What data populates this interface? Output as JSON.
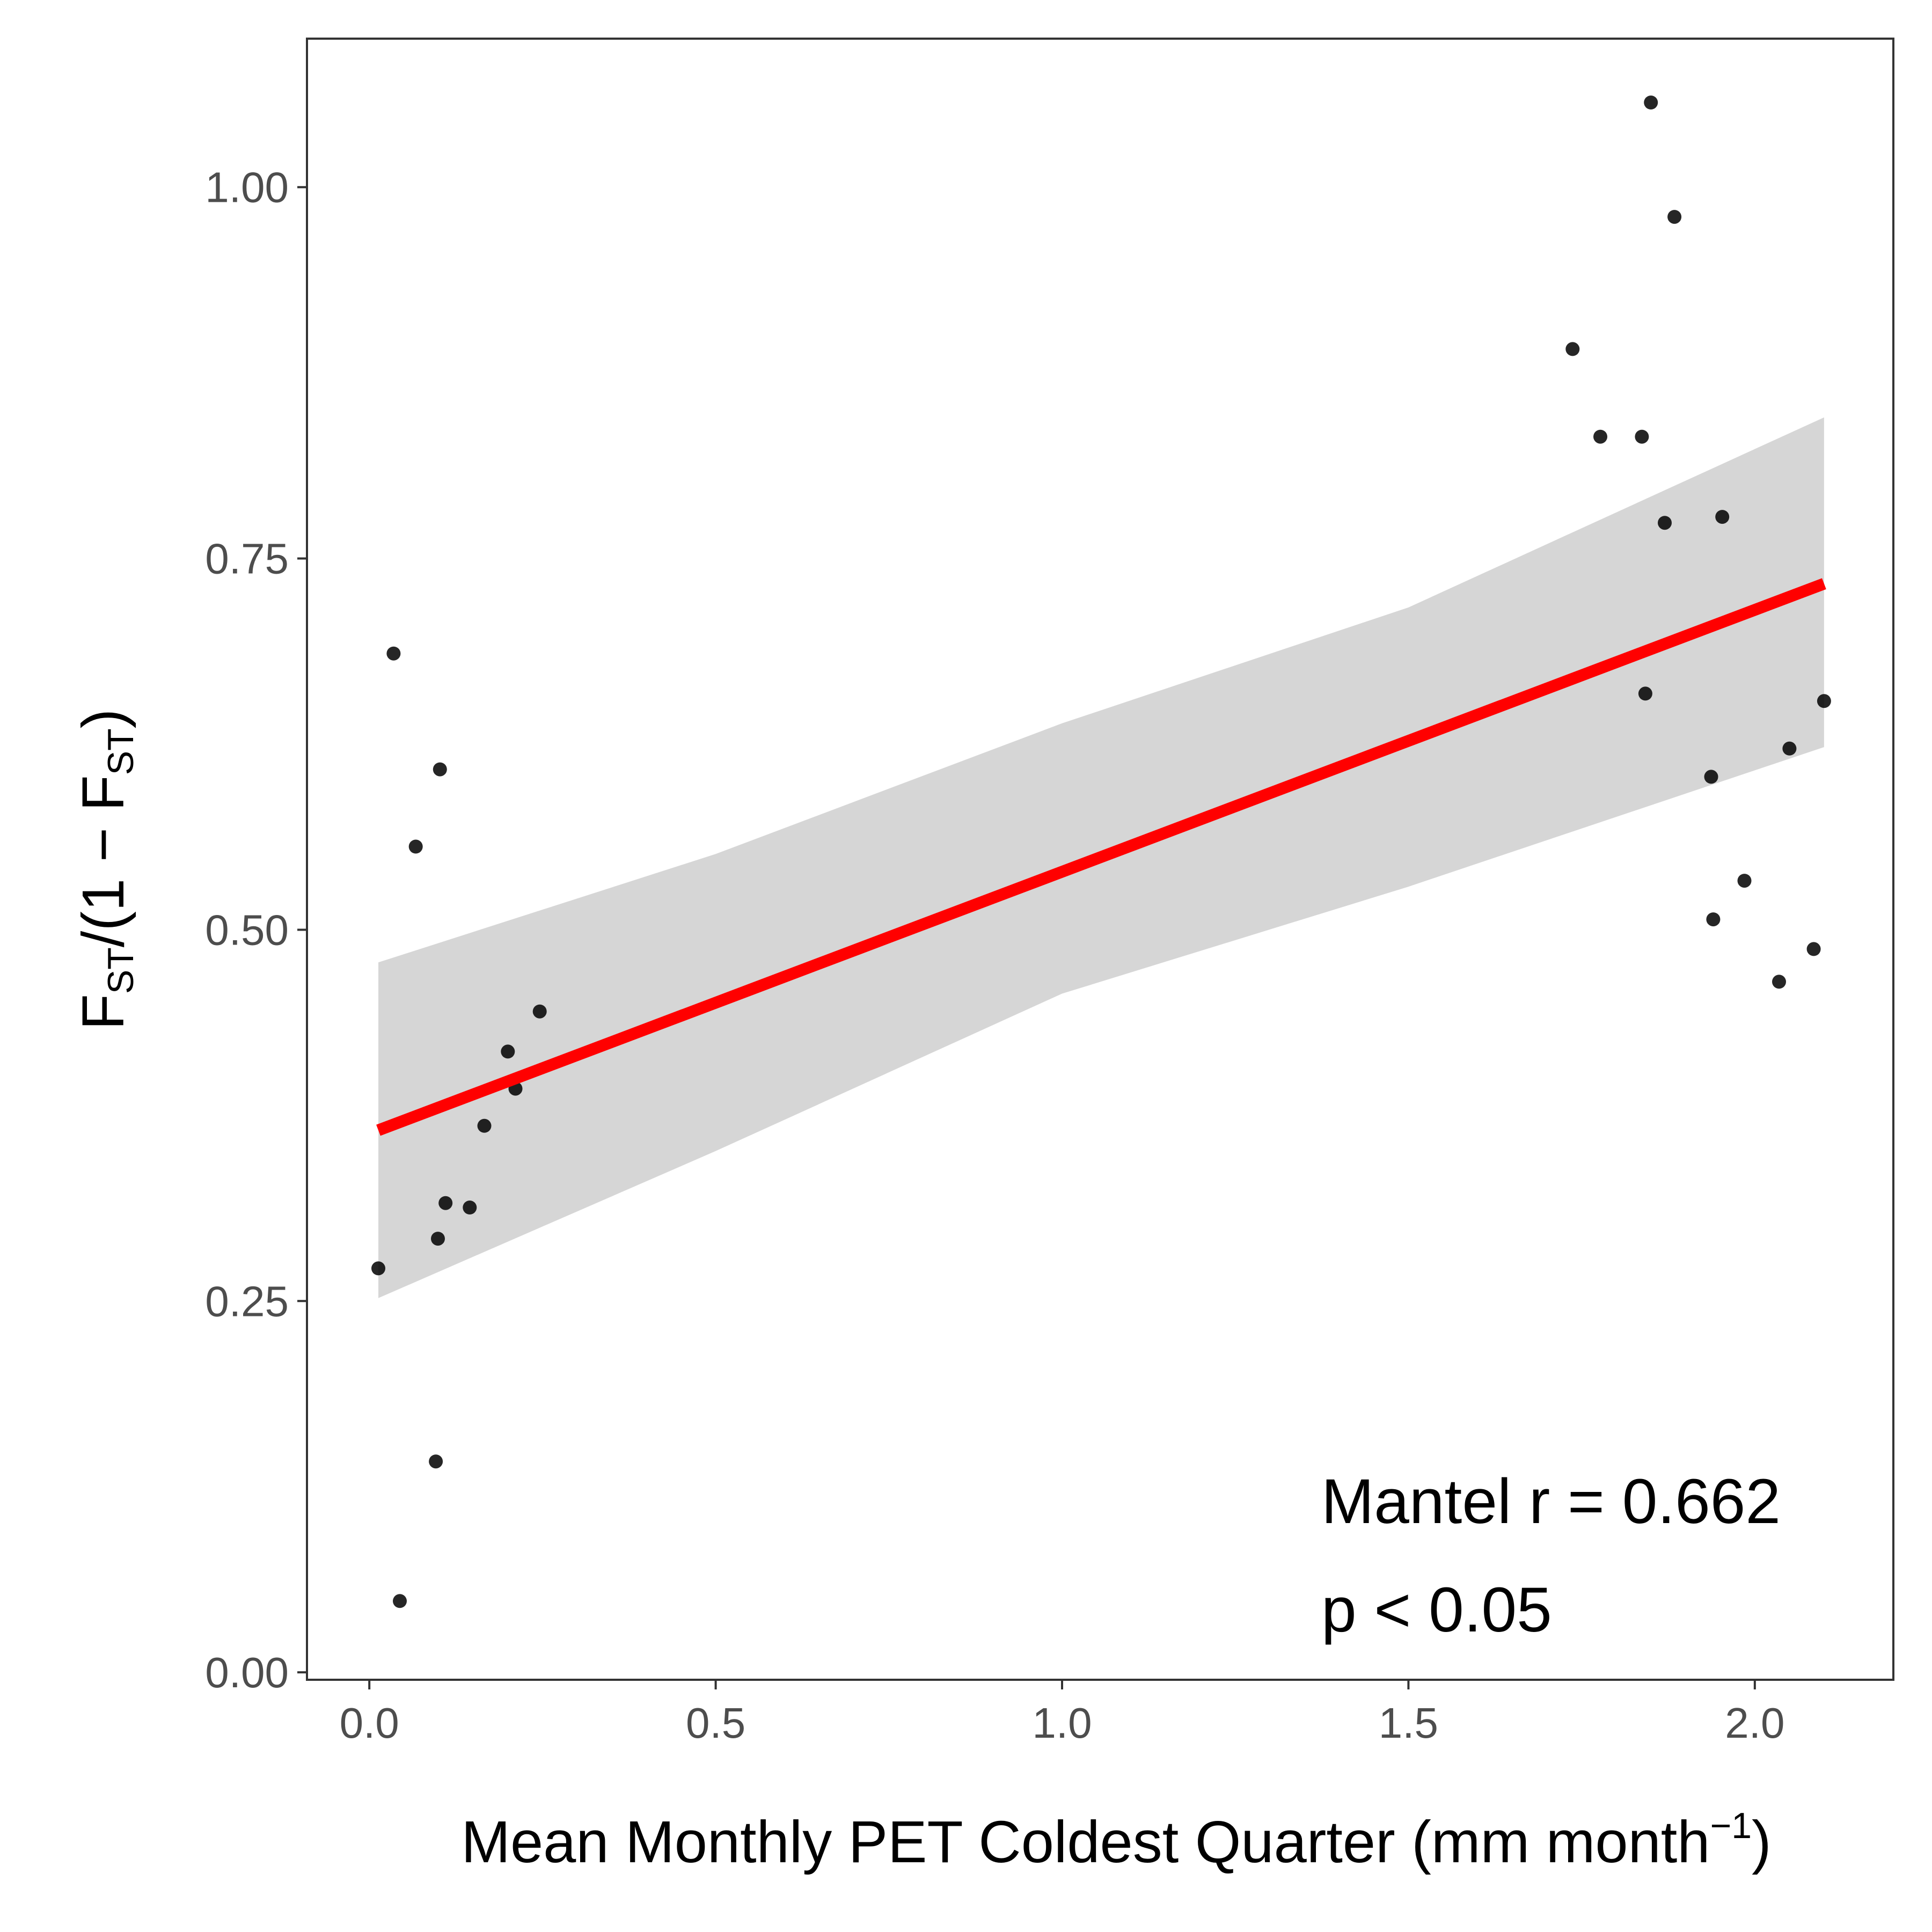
{
  "chart_data": {
    "type": "scatter",
    "xlabel": {
      "main": "Mean Monthly PET Coldest Quarter (mm month",
      "superscript": "−1",
      "close": ")"
    },
    "ylabel": {
      "f1": "F",
      "sub1": "ST",
      "mid": "/(1 − F",
      "sub2": "ST",
      "close": ")"
    },
    "xlim": [
      -0.09,
      2.2
    ],
    "ylim": [
      -0.005,
      1.1
    ],
    "x_ticks": [
      {
        "value": 0.0,
        "label": "0.0"
      },
      {
        "value": 0.5,
        "label": "0.5"
      },
      {
        "value": 1.0,
        "label": "1.0"
      },
      {
        "value": 1.5,
        "label": "1.5"
      },
      {
        "value": 2.0,
        "label": "2.0"
      }
    ],
    "y_ticks": [
      {
        "value": 0.0,
        "label": "0.00"
      },
      {
        "value": 0.25,
        "label": "0.25"
      },
      {
        "value": 0.5,
        "label": "0.50"
      },
      {
        "value": 0.75,
        "label": "0.75"
      },
      {
        "value": 1.0,
        "label": "1.00"
      }
    ],
    "grid": false,
    "points": [
      {
        "x": 0.013,
        "y": 0.272
      },
      {
        "x": 0.035,
        "y": 0.686
      },
      {
        "x": 0.044,
        "y": 0.048
      },
      {
        "x": 0.067,
        "y": 0.556
      },
      {
        "x": 0.096,
        "y": 0.142
      },
      {
        "x": 0.099,
        "y": 0.292
      },
      {
        "x": 0.102,
        "y": 0.608
      },
      {
        "x": 0.11,
        "y": 0.316
      },
      {
        "x": 0.145,
        "y": 0.313
      },
      {
        "x": 0.166,
        "y": 0.368
      },
      {
        "x": 0.2,
        "y": 0.418
      },
      {
        "x": 0.211,
        "y": 0.393
      },
      {
        "x": 0.246,
        "y": 0.445
      },
      {
        "x": 1.737,
        "y": 0.891
      },
      {
        "x": 1.777,
        "y": 0.832
      },
      {
        "x": 1.837,
        "y": 0.832
      },
      {
        "x": 1.842,
        "y": 0.659
      },
      {
        "x": 1.85,
        "y": 1.057
      },
      {
        "x": 1.87,
        "y": 0.774
      },
      {
        "x": 1.884,
        "y": 0.98
      },
      {
        "x": 1.937,
        "y": 0.603
      },
      {
        "x": 1.94,
        "y": 0.507
      },
      {
        "x": 1.953,
        "y": 0.778
      },
      {
        "x": 1.985,
        "y": 0.533
      },
      {
        "x": 2.035,
        "y": 0.465
      },
      {
        "x": 2.05,
        "y": 0.622
      },
      {
        "x": 2.085,
        "y": 0.487
      },
      {
        "x": 2.1,
        "y": 0.654
      }
    ],
    "fit_line": {
      "x": [
        0.013,
        2.1
      ],
      "y": [
        0.365,
        0.733
      ]
    },
    "confidence_band": {
      "x": [
        0.013,
        0.5,
        1.0,
        1.5,
        2.1
      ],
      "upper": [
        0.478,
        0.551,
        0.639,
        0.717,
        0.845
      ],
      "lower": [
        0.252,
        0.351,
        0.457,
        0.529,
        0.623
      ]
    },
    "colors": {
      "points": "#000000",
      "fit_line": "#ff0000",
      "band": "#d6d6d6",
      "panel_border": "#333333",
      "tick_label": "#4d4d4d"
    },
    "annotations": [
      "Mantel r = 0.662",
      "p < 0.05"
    ]
  }
}
